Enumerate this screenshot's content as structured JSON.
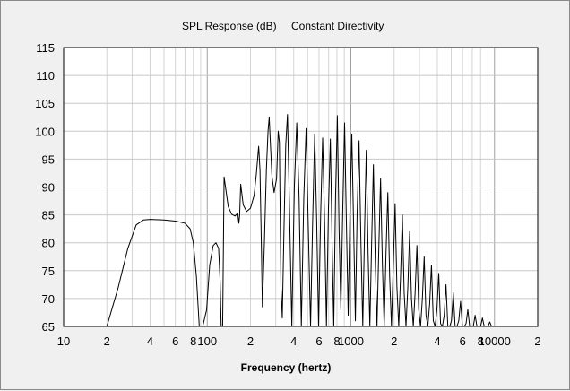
{
  "chart_data": {
    "type": "line",
    "title": "SPL Response (dB)",
    "subtitle": "Constant Directivity",
    "xlabel": "Frequency (hertz)",
    "ylabel": "",
    "x_scale": "log",
    "xlim": [
      10,
      20000
    ],
    "ylim": [
      65,
      115
    ],
    "grid": true,
    "line_color": "#000000",
    "y_ticks": [
      "65",
      "70",
      "75",
      "80",
      "85",
      "90",
      "95",
      "100",
      "105",
      "110",
      "115"
    ],
    "x_tick_labels": [
      {
        "value": 10,
        "label": "10"
      },
      {
        "value": 20,
        "label": "2"
      },
      {
        "value": 40,
        "label": "4"
      },
      {
        "value": 60,
        "label": "6"
      },
      {
        "value": 80,
        "label": "8"
      },
      {
        "value": 100,
        "label": "100"
      },
      {
        "value": 200,
        "label": "2"
      },
      {
        "value": 400,
        "label": "4"
      },
      {
        "value": 600,
        "label": "6"
      },
      {
        "value": 800,
        "label": "8"
      },
      {
        "value": 1000,
        "label": "1000"
      },
      {
        "value": 2000,
        "label": "2"
      },
      {
        "value": 4000,
        "label": "4"
      },
      {
        "value": 6000,
        "label": "6"
      },
      {
        "value": 8000,
        "label": "8"
      },
      {
        "value": 10000,
        "label": "10000"
      },
      {
        "value": 20000,
        "label": "2"
      }
    ],
    "series": [
      {
        "values": [
          [
            20,
            65
          ],
          [
            24,
            72
          ],
          [
            28,
            79
          ],
          [
            32,
            83.2
          ],
          [
            36,
            84.1
          ],
          [
            40,
            84.2
          ],
          [
            50,
            84.1
          ],
          [
            60,
            83.9
          ],
          [
            70,
            83.5
          ],
          [
            76,
            82.5
          ],
          [
            80,
            80
          ],
          [
            84,
            74
          ],
          [
            88,
            65
          ],
          [
            93,
            65
          ],
          [
            99,
            68
          ],
          [
            104,
            76
          ],
          [
            110,
            79.5
          ],
          [
            115,
            80
          ],
          [
            120,
            79
          ],
          [
            123,
            73
          ],
          [
            125,
            65
          ],
          [
            128,
            65
          ],
          [
            131,
            91.8
          ],
          [
            134,
            90
          ],
          [
            140,
            86.5
          ],
          [
            148,
            85.1
          ],
          [
            156,
            84.8
          ],
          [
            163,
            85.3
          ],
          [
            166,
            83.5
          ],
          [
            168,
            84.8
          ],
          [
            171,
            90.5
          ],
          [
            178,
            86.8
          ],
          [
            188,
            85.6
          ],
          [
            200,
            86.2
          ],
          [
            212,
            88.5
          ],
          [
            220,
            92.5
          ],
          [
            228,
            97.3
          ],
          [
            233,
            93
          ],
          [
            238,
            80
          ],
          [
            242,
            68.5
          ],
          [
            250,
            80
          ],
          [
            258,
            93
          ],
          [
            265,
            100
          ],
          [
            270,
            102.5
          ],
          [
            275,
            98
          ],
          [
            282,
            92
          ],
          [
            292,
            89
          ],
          [
            304,
            91.5
          ],
          [
            312,
            100
          ],
          [
            318,
            98
          ],
          [
            326,
            72
          ],
          [
            333,
            66.5
          ],
          [
            342,
            82
          ],
          [
            352,
            97.5
          ],
          [
            362,
            103
          ],
          [
            372,
            89
          ],
          [
            388,
            65
          ],
          [
            404,
            90
          ],
          [
            420,
            101.5
          ],
          [
            436,
            88
          ],
          [
            452,
            65
          ],
          [
            470,
            88
          ],
          [
            488,
            100.5
          ],
          [
            506,
            82
          ],
          [
            524,
            65
          ],
          [
            542,
            84
          ],
          [
            560,
            99.5
          ],
          [
            578,
            84
          ],
          [
            596,
            65
          ],
          [
            616,
            85
          ],
          [
            636,
            98.8
          ],
          [
            656,
            84
          ],
          [
            676,
            65
          ],
          [
            698,
            86
          ],
          [
            720,
            98.6
          ],
          [
            740,
            80
          ],
          [
            760,
            65
          ],
          [
            782,
            88
          ],
          [
            805,
            102.8
          ],
          [
            828,
            82
          ],
          [
            852,
            68
          ],
          [
            878,
            86
          ],
          [
            904,
            101.5
          ],
          [
            930,
            84
          ],
          [
            958,
            67
          ],
          [
            986,
            86
          ],
          [
            1015,
            99.5
          ],
          [
            1045,
            83
          ],
          [
            1075,
            66
          ],
          [
            1105,
            85
          ],
          [
            1140,
            98.3
          ],
          [
            1175,
            80
          ],
          [
            1210,
            65
          ],
          [
            1245,
            82
          ],
          [
            1280,
            96.6
          ],
          [
            1318,
            78
          ],
          [
            1356,
            65
          ],
          [
            1395,
            80
          ],
          [
            1435,
            94
          ],
          [
            1478,
            77
          ],
          [
            1520,
            65
          ],
          [
            1565,
            79
          ],
          [
            1610,
            91.5
          ],
          [
            1658,
            76
          ],
          [
            1706,
            65
          ],
          [
            1756,
            78
          ],
          [
            1808,
            89
          ],
          [
            1862,
            74
          ],
          [
            1917,
            65
          ],
          [
            1974,
            76
          ],
          [
            2032,
            87
          ],
          [
            2092,
            72
          ],
          [
            2154,
            65
          ],
          [
            2218,
            74
          ],
          [
            2283,
            85
          ],
          [
            2350,
            71
          ],
          [
            2420,
            65
          ],
          [
            2492,
            72
          ],
          [
            2566,
            82
          ],
          [
            2642,
            70
          ],
          [
            2720,
            65
          ],
          [
            2800,
            71
          ],
          [
            2883,
            79.5
          ],
          [
            2968,
            68
          ],
          [
            3056,
            65
          ],
          [
            3146,
            70
          ],
          [
            3239,
            77.5
          ],
          [
            3335,
            67
          ],
          [
            3434,
            65
          ],
          [
            3535,
            69
          ],
          [
            3640,
            76
          ],
          [
            3748,
            66
          ],
          [
            3858,
            65
          ],
          [
            3972,
            68
          ],
          [
            4090,
            74.5
          ],
          [
            4211,
            65.5
          ],
          [
            4336,
            65
          ],
          [
            4464,
            67
          ],
          [
            4596,
            72.5
          ],
          [
            4732,
            65
          ],
          [
            4872,
            65
          ],
          [
            5016,
            66
          ],
          [
            5165,
            71
          ],
          [
            5318,
            65
          ],
          [
            5475,
            65
          ],
          [
            5637,
            66
          ],
          [
            5804,
            69.5
          ],
          [
            5976,
            65
          ],
          [
            6153,
            65
          ],
          [
            6335,
            65.5
          ],
          [
            6522,
            68
          ],
          [
            6715,
            65
          ],
          [
            6914,
            65
          ],
          [
            7118,
            65
          ],
          [
            7329,
            67
          ],
          [
            7546,
            65
          ],
          [
            7769,
            65
          ],
          [
            8000,
            65
          ],
          [
            8240,
            66.5
          ],
          [
            8480,
            65
          ],
          [
            8740,
            65
          ],
          [
            9000,
            65
          ],
          [
            9270,
            65.8
          ],
          [
            9540,
            65
          ]
        ]
      }
    ]
  }
}
